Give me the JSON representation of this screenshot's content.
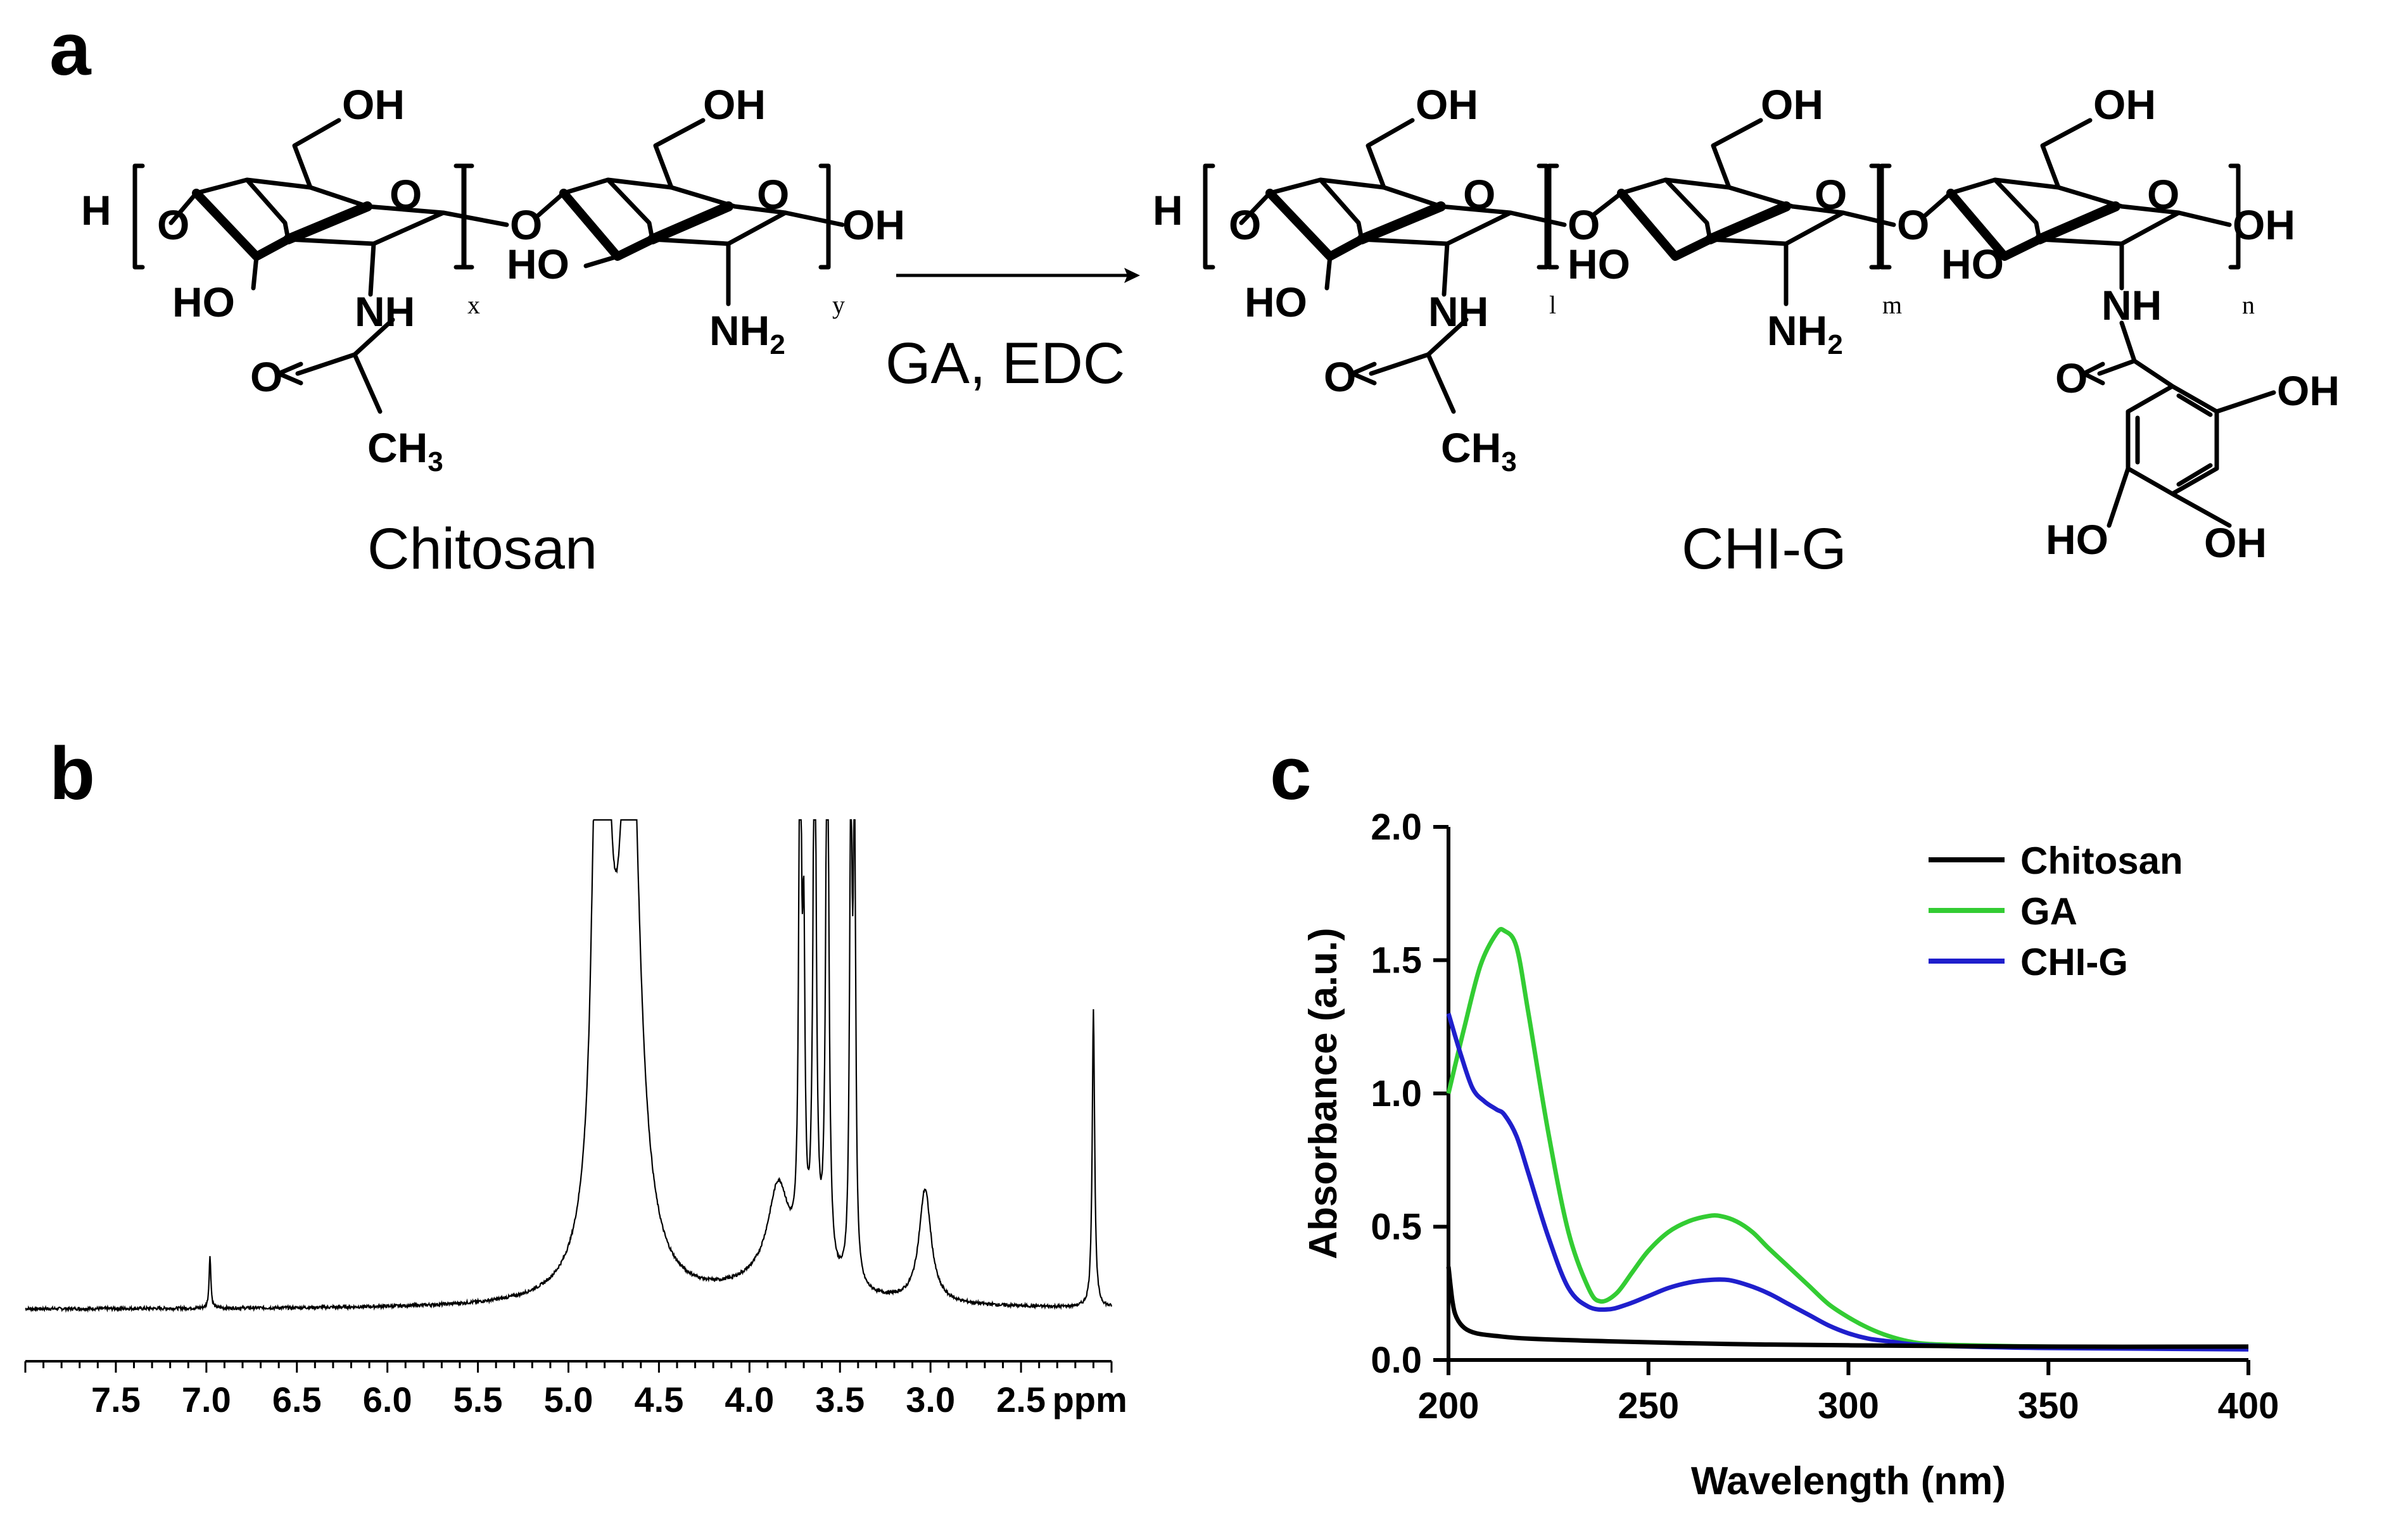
{
  "panels": {
    "a": {
      "letter": "a",
      "reaction_label": "GA, EDC",
      "chitosan_name": "Chitosan",
      "product_name": "CHI-G",
      "atoms": {
        "H": "H",
        "O": "O",
        "OH": "OH",
        "HO": "HO",
        "NH": "NH",
        "NH2": "NH2",
        "CH3": "CH3"
      },
      "subscripts": {
        "x": "x",
        "y": "y",
        "l": "l",
        "m": "m",
        "n": "n"
      }
    },
    "b": {
      "letter": "b"
    },
    "c": {
      "letter": "c"
    }
  },
  "chart_data": [
    {
      "panel": "b",
      "type": "line",
      "title": "",
      "xlabel": "ppm",
      "ylabel": "",
      "x_reversed": true,
      "xlim": [
        8.0,
        2.0
      ],
      "x_tick_labels": [
        "7.5",
        "7.0",
        "6.5",
        "6.0",
        "5.5",
        "5.0",
        "4.5",
        "4.0",
        "3.5",
        "3.0",
        "2.5"
      ],
      "x_tick_values": [
        7.5,
        7.0,
        6.5,
        6.0,
        5.5,
        5.0,
        4.5,
        4.0,
        3.5,
        3.0,
        2.5
      ],
      "y_axis_visible": false,
      "baseline": 0.04,
      "peaks": [
        {
          "ppm": 6.98,
          "height": 0.1,
          "width": 0.006
        },
        {
          "ppm": 4.86,
          "height": 0.28,
          "width": 0.02
        },
        {
          "ppm": 4.81,
          "height": 1.2,
          "width": 0.05
        },
        {
          "ppm": 4.66,
          "height": 1.2,
          "width": 0.06
        },
        {
          "ppm": 3.84,
          "height": 0.18,
          "width": 0.07
        },
        {
          "ppm": 3.72,
          "height": 1.2,
          "width": 0.008
        },
        {
          "ppm": 3.7,
          "height": 0.55,
          "width": 0.008
        },
        {
          "ppm": 3.64,
          "height": 1.2,
          "width": 0.01
        },
        {
          "ppm": 3.57,
          "height": 1.2,
          "width": 0.01
        },
        {
          "ppm": 3.44,
          "height": 0.95,
          "width": 0.008
        },
        {
          "ppm": 3.42,
          "height": 0.9,
          "width": 0.008
        },
        {
          "ppm": 3.03,
          "height": 0.22,
          "width": 0.04
        },
        {
          "ppm": 2.1,
          "height": 0.58,
          "width": 0.008
        }
      ],
      "ylim": [
        0,
        1.0
      ]
    },
    {
      "panel": "c",
      "type": "line",
      "title": "",
      "xlabel": "Wavelength (nm)",
      "ylabel": "Absorbance (a.u.)",
      "xlim": [
        200,
        400
      ],
      "ylim": [
        0,
        2.0
      ],
      "x_ticks": [
        200,
        250,
        300,
        350,
        400
      ],
      "x_tick_labels": [
        "200",
        "250",
        "300",
        "350",
        "400"
      ],
      "y_ticks": [
        0,
        0.5,
        1.0,
        1.5,
        2.0
      ],
      "y_tick_labels": [
        "0.0",
        "0.5",
        "1.0",
        "1.5",
        "2.0"
      ],
      "legend_position": "top-right",
      "series": [
        {
          "name": "Chitosan",
          "color": "#000000",
          "x": [
            200,
            201,
            202,
            204,
            207,
            212,
            220,
            240,
            270,
            300,
            350,
            400
          ],
          "y": [
            0.35,
            0.22,
            0.16,
            0.12,
            0.1,
            0.09,
            0.08,
            0.07,
            0.06,
            0.055,
            0.05,
            0.05
          ]
        },
        {
          "name": "GA",
          "color": "#33cc33",
          "x": [
            200,
            204,
            208,
            212,
            214,
            217,
            220,
            225,
            230,
            235,
            238,
            242,
            246,
            250,
            255,
            260,
            265,
            268,
            272,
            276,
            280,
            285,
            290,
            295,
            300,
            305,
            310,
            315,
            320,
            330,
            350,
            400
          ],
          "y": [
            1.0,
            1.25,
            1.48,
            1.6,
            1.61,
            1.55,
            1.3,
            0.85,
            0.48,
            0.27,
            0.22,
            0.25,
            0.33,
            0.41,
            0.48,
            0.52,
            0.54,
            0.54,
            0.52,
            0.48,
            0.42,
            0.35,
            0.28,
            0.21,
            0.16,
            0.12,
            0.09,
            0.07,
            0.06,
            0.055,
            0.05,
            0.045
          ]
        },
        {
          "name": "CHI-G",
          "color": "#1f1fcc",
          "x": [
            200,
            203,
            206,
            209,
            212,
            214,
            217,
            220,
            225,
            230,
            235,
            240,
            245,
            250,
            255,
            260,
            265,
            270,
            275,
            280,
            285,
            290,
            295,
            300,
            305,
            310,
            315,
            320,
            330,
            350,
            400
          ],
          "y": [
            1.3,
            1.15,
            1.02,
            0.97,
            0.94,
            0.92,
            0.84,
            0.7,
            0.46,
            0.27,
            0.2,
            0.19,
            0.21,
            0.24,
            0.27,
            0.29,
            0.3,
            0.3,
            0.28,
            0.25,
            0.21,
            0.17,
            0.13,
            0.1,
            0.08,
            0.07,
            0.06,
            0.055,
            0.05,
            0.045,
            0.04
          ]
        }
      ]
    }
  ]
}
